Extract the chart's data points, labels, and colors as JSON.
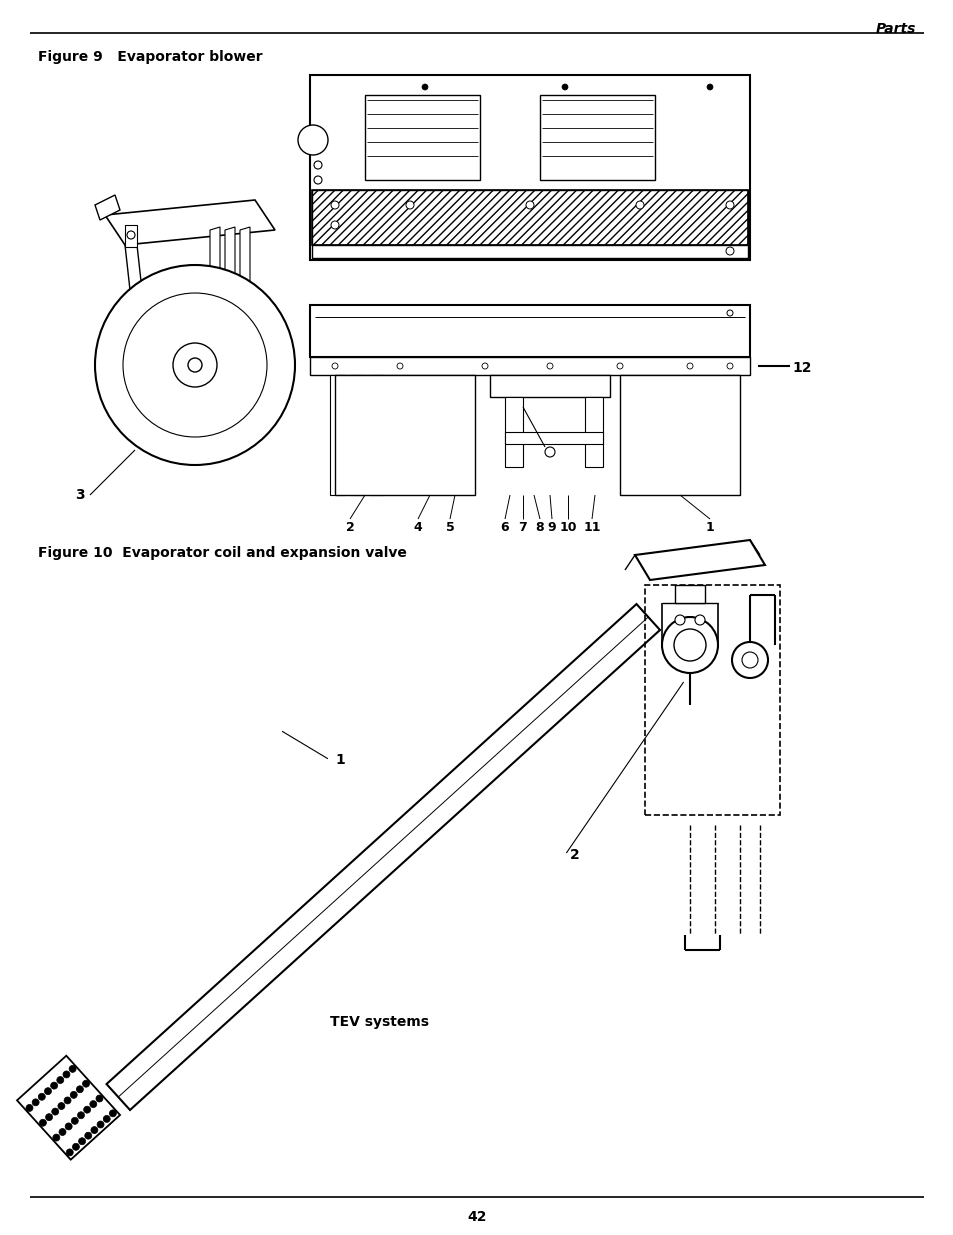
{
  "page_title": "Parts",
  "figure9_caption": "Figure 9   Evaporator blower",
  "figure10_caption": "Figure 10  Evaporator coil and expansion valve",
  "page_number": "42",
  "bg_color": "#ffffff",
  "line_color": "#000000"
}
